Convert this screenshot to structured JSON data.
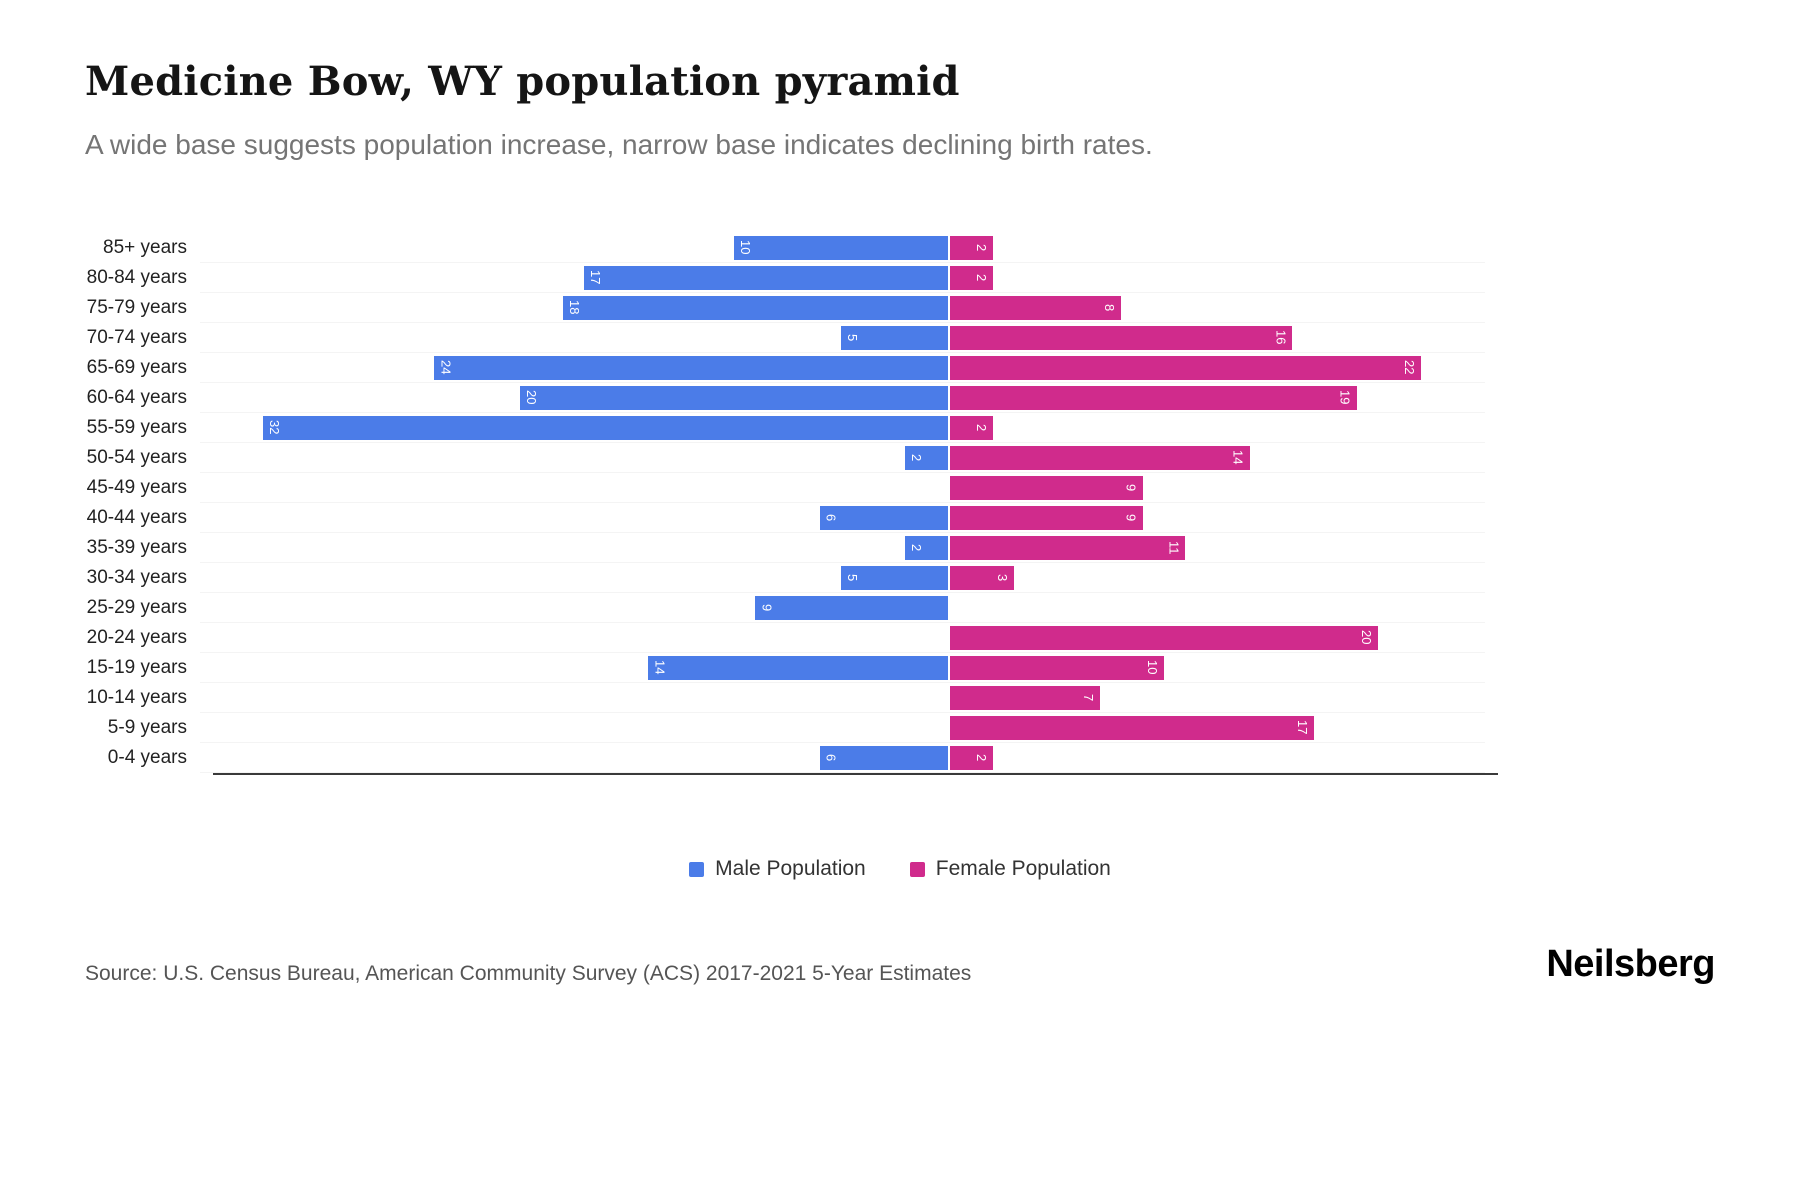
{
  "title": "Medicine Bow, WY population pyramid",
  "subtitle": "A wide base suggests population increase, narrow base indicates declining birth rates.",
  "source": "Source: U.S. Census Bureau, American Community Survey (ACS) 2017-2021 5-Year Estimates",
  "logo": "Neilsberg",
  "legend": [
    {
      "label": "Male Population",
      "color": "#4b7ce8"
    },
    {
      "label": "Female Population",
      "color": "#d02b8c"
    }
  ],
  "chart_data": {
    "type": "bar",
    "subtype": "population-pyramid",
    "orientation": "horizontal",
    "categories": [
      "85+ years",
      "80-84 years",
      "75-79 years",
      "70-74 years",
      "65-69 years",
      "60-64 years",
      "55-59 years",
      "50-54 years",
      "45-49 years",
      "40-44 years",
      "35-39 years",
      "30-34 years",
      "25-29 years",
      "20-24 years",
      "15-19 years",
      "10-14 years",
      "5-9 years",
      "0-4 years"
    ],
    "series": [
      {
        "name": "Male Population",
        "side": "left",
        "color": "#4b7ce8",
        "values": [
          10,
          17,
          18,
          5,
          24,
          20,
          32,
          2,
          0,
          6,
          2,
          5,
          9,
          0,
          14,
          0,
          0,
          6
        ]
      },
      {
        "name": "Female Population",
        "side": "right",
        "color": "#d02b8c",
        "values": [
          2,
          2,
          8,
          16,
          22,
          19,
          2,
          14,
          9,
          9,
          11,
          3,
          0,
          20,
          10,
          7,
          17,
          2
        ]
      }
    ],
    "xlim_left": [
      0,
      35
    ],
    "xlim_right": [
      0,
      25
    ],
    "value_labels": "inside-bar-end, rotated 90deg, white",
    "grid": "faint horizontal row lines",
    "legend_position": "bottom-center"
  }
}
